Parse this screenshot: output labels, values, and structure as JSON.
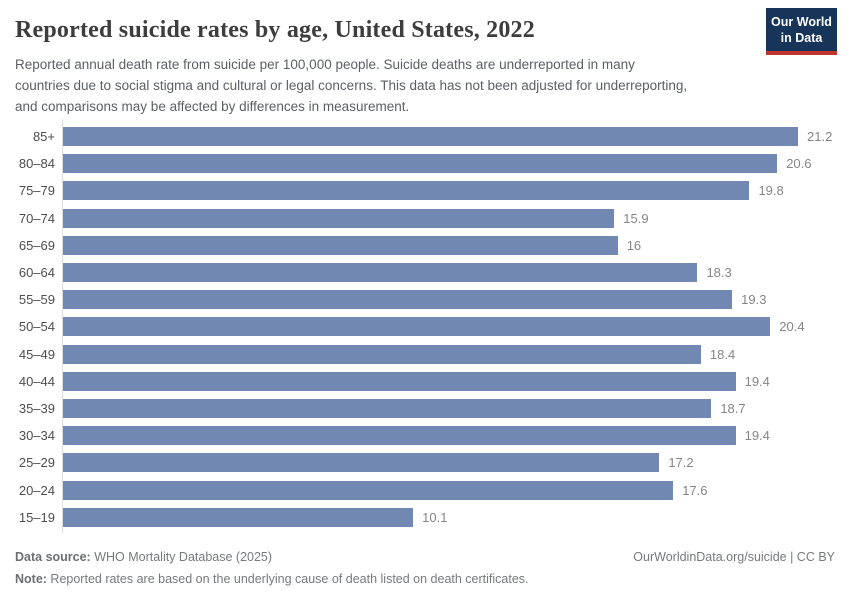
{
  "header": {
    "title": "Reported suicide rates by age, United States, 2022",
    "subtitle": "Reported annual death rate from suicide per 100,000 people. Suicide deaths are underreported in many countries due to social stigma and cultural or legal concerns. This data has not been adjusted for underreporting, and comparisons may be affected by differences in measurement.",
    "logo": {
      "line1": "Our World",
      "line2": "in Data"
    }
  },
  "chart_data": {
    "type": "bar",
    "orientation": "horizontal",
    "title": "Reported suicide rates by age, United States, 2022",
    "xlabel": "",
    "ylabel": "",
    "xlim": [
      0,
      21.2
    ],
    "grid": false,
    "legend": false,
    "bar_color": "#7088b2",
    "categories": [
      "85+",
      "80–84",
      "75–79",
      "70–74",
      "65–69",
      "60–64",
      "55–59",
      "50–54",
      "45–49",
      "40–44",
      "35–39",
      "30–34",
      "25–29",
      "20–24",
      "15–19"
    ],
    "values": [
      21.2,
      20.6,
      19.8,
      15.9,
      16,
      18.3,
      19.3,
      20.4,
      18.4,
      19.4,
      18.7,
      19.4,
      17.2,
      17.6,
      10.1
    ],
    "value_labels": [
      "21.2",
      "20.6",
      "19.8",
      "15.9",
      "16",
      "18.3",
      "19.3",
      "20.4",
      "18.4",
      "19.4",
      "18.7",
      "19.4",
      "17.2",
      "17.6",
      "10.1"
    ]
  },
  "footer": {
    "source_label": "Data source:",
    "source_text": " WHO Mortality Database (2025)",
    "note_label": "Note:",
    "note_text": " Reported rates are based on the underlying cause of death listed on death certificates.",
    "link": "OurWorldinData.org/suicide | CC BY"
  },
  "colors": {
    "bar": "#7088b2",
    "axis_line": "#dcdcdc",
    "logo_background": "#173459",
    "logo_stripe": "#c0352e",
    "title_text": "#3d3d3d",
    "subtitle_text": "#5b6064",
    "category_text": "#4e4e4e",
    "value_text": "#858585",
    "footer_text": "#77797b"
  }
}
